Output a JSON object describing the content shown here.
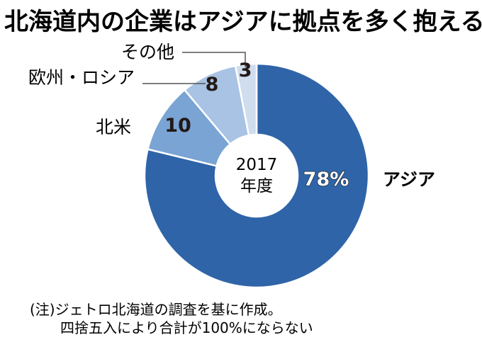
{
  "chart_data": {
    "type": "pie",
    "donut": true,
    "title": "北海道内の企業はアジアに拠点を多く抱える",
    "center_label": [
      "2017",
      "年度"
    ],
    "slices": [
      {
        "name": "アジア",
        "value": 78,
        "display": "78%",
        "color": "#2f64a8"
      },
      {
        "name": "北米",
        "value": 10,
        "display": "10",
        "color": "#79a4d4"
      },
      {
        "name": "欧州・ロシア",
        "value": 8,
        "display": "8",
        "color": "#a8c3e3"
      },
      {
        "name": "その他",
        "value": 3,
        "display": "3",
        "color": "#cfddee"
      }
    ],
    "notes": [
      "(注)ジェトロ北海道の調査を基に作成。",
      "四捨五入により合計が100%にならない"
    ]
  }
}
